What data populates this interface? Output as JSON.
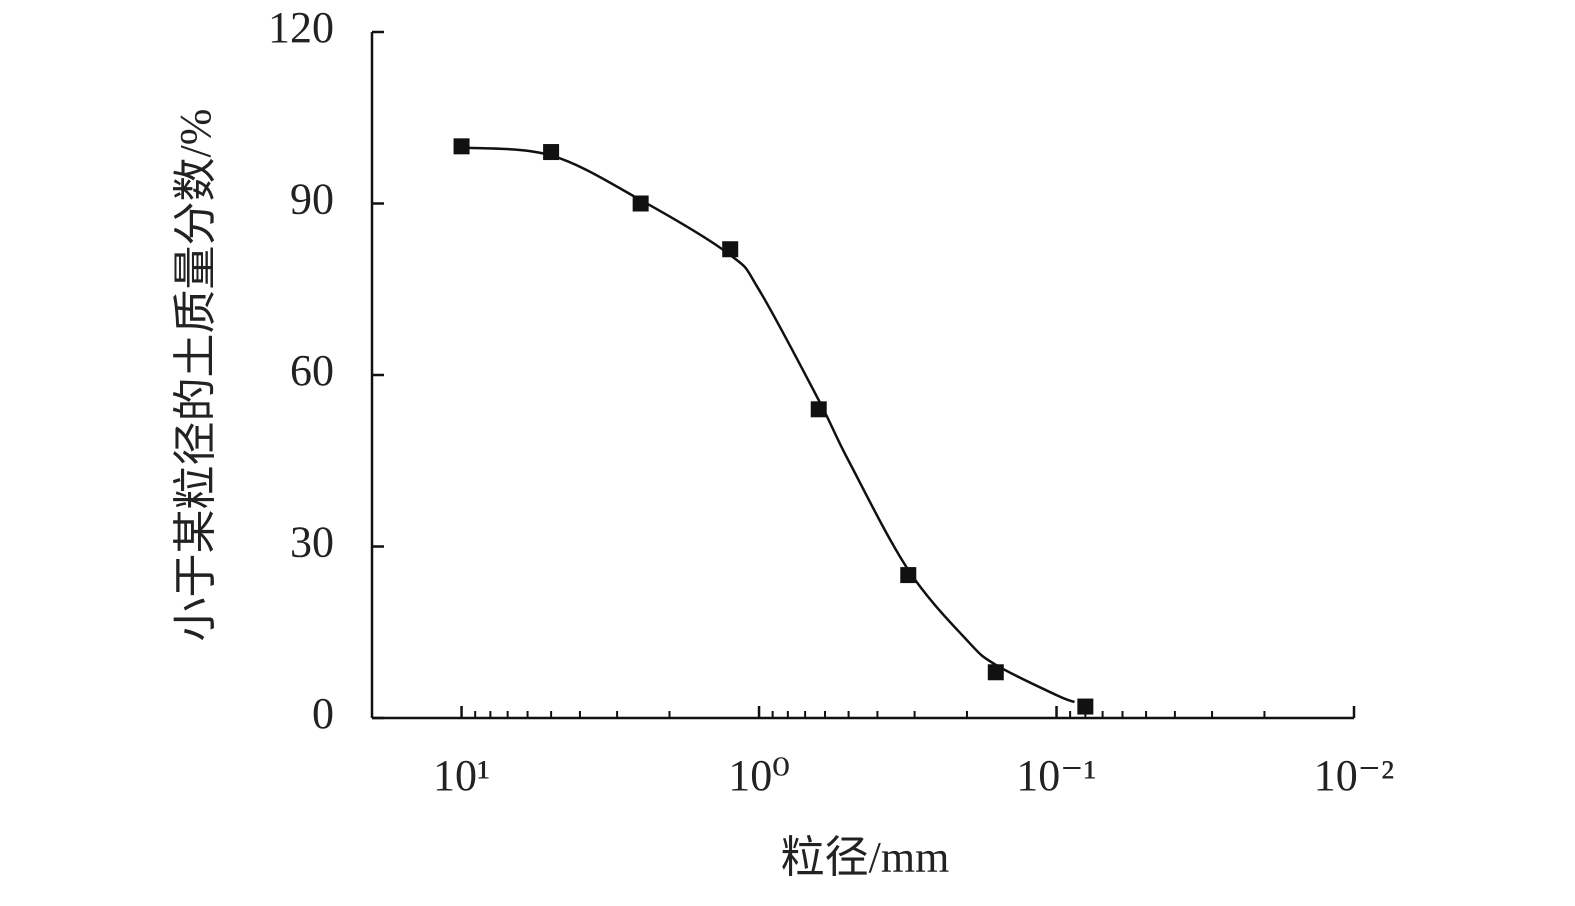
{
  "chart_data": {
    "type": "scatter",
    "x_label": "粒径/mm",
    "y_label": "小于某粒径的土质量分数/%",
    "xscale": "log",
    "xlim": [
      20,
      0.01
    ],
    "xticks": [
      {
        "value": 10,
        "label": "10¹"
      },
      {
        "value": 1,
        "label": "10⁰"
      },
      {
        "value": 0.1,
        "label": "10⁻¹"
      },
      {
        "value": 0.01,
        "label": "10⁻²"
      }
    ],
    "xminorticks": [
      9,
      8,
      7,
      6,
      5,
      4,
      3,
      2,
      0.9,
      0.8,
      0.7,
      0.6,
      0.5,
      0.4,
      0.3,
      0.2,
      0.09,
      0.08,
      0.07,
      0.06,
      0.05,
      0.04,
      0.03,
      0.02
    ],
    "ylim": [
      0,
      120
    ],
    "yticks": [
      0,
      30,
      60,
      90,
      120
    ],
    "series": [
      {
        "mode": "markers",
        "color": "#111111",
        "x": [
          10,
          5,
          2.5,
          1.25,
          0.63,
          0.315,
          0.16,
          0.08
        ],
        "values": [
          100,
          99,
          90,
          82,
          54,
          25,
          8,
          2
        ]
      },
      {
        "mode": "line",
        "color": "#111111",
        "x": [
          10,
          5,
          2.5,
          1.25,
          1,
          0.63,
          0.5,
          0.315,
          0.2,
          0.16,
          0.1,
          0.087
        ],
        "values": [
          99.8,
          98.4,
          90.6,
          81,
          74.9,
          55.6,
          45,
          25.9,
          13.6,
          9.3,
          4,
          2.8
        ]
      }
    ]
  }
}
